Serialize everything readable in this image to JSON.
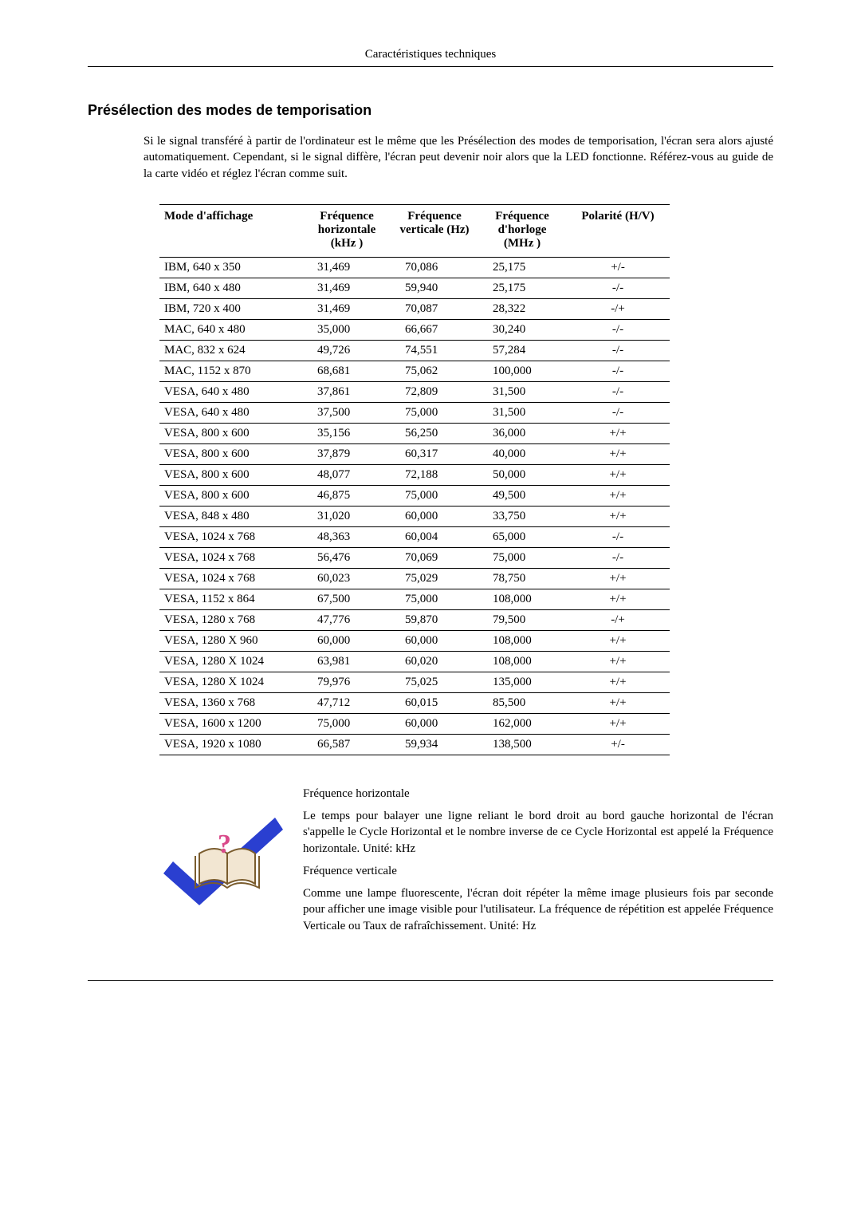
{
  "page_header": "Caractéristiques techniques",
  "section_title": "Présélection des modes de temporisation",
  "intro_text": "Si le signal transféré à partir de l'ordinateur est le même que les Présélection des modes de temporisation, l'écran sera alors ajusté automatiquement. Cependant, si le signal diffère, l'écran peut devenir noir alors que la LED fonctionne. Référez-vous au guide de la carte vidéo et réglez l'écran comme suit.",
  "table": {
    "headers": {
      "mode": "Mode d'affichage",
      "h_freq": "Fréquence horizontale (kHz )",
      "v_freq": "Fréquence verticale (Hz)",
      "clk": "Fréquence d'horloge (MHz )",
      "pol": "Polarité (H/V)"
    },
    "rows": [
      {
        "mode": "IBM, 640 x 350",
        "h": "31,469",
        "v": "70,086",
        "c": "25,175",
        "p": "+/-"
      },
      {
        "mode": "IBM, 640 x 480",
        "h": "31,469",
        "v": "59,940",
        "c": "25,175",
        "p": "-/-"
      },
      {
        "mode": "IBM, 720 x 400",
        "h": "31,469",
        "v": "70,087",
        "c": "28,322",
        "p": "-/+"
      },
      {
        "mode": "MAC, 640 x 480",
        "h": "35,000",
        "v": "66,667",
        "c": "30,240",
        "p": "-/-"
      },
      {
        "mode": "MAC, 832 x 624",
        "h": "49,726",
        "v": "74,551",
        "c": "57,284",
        "p": "-/-"
      },
      {
        "mode": "MAC, 1152 x 870",
        "h": "68,681",
        "v": "75,062",
        "c": "100,000",
        "p": "-/-"
      },
      {
        "mode": "VESA, 640 x 480",
        "h": "37,861",
        "v": "72,809",
        "c": "31,500",
        "p": "-/-"
      },
      {
        "mode": "VESA, 640 x 480",
        "h": "37,500",
        "v": "75,000",
        "c": "31,500",
        "p": "-/-"
      },
      {
        "mode": "VESA, 800 x 600",
        "h": "35,156",
        "v": "56,250",
        "c": "36,000",
        "p": "+/+"
      },
      {
        "mode": "VESA, 800 x 600",
        "h": "37,879",
        "v": "60,317",
        "c": "40,000",
        "p": "+/+"
      },
      {
        "mode": "VESA, 800 x 600",
        "h": "48,077",
        "v": "72,188",
        "c": "50,000",
        "p": "+/+"
      },
      {
        "mode": "VESA, 800 x 600",
        "h": "46,875",
        "v": "75,000",
        "c": "49,500",
        "p": "+/+"
      },
      {
        "mode": "VESA, 848 x 480",
        "h": "31,020",
        "v": "60,000",
        "c": "33,750",
        "p": "+/+"
      },
      {
        "mode": "VESA, 1024 x 768",
        "h": "48,363",
        "v": "60,004",
        "c": "65,000",
        "p": "-/-"
      },
      {
        "mode": "VESA, 1024 x 768",
        "h": "56,476",
        "v": "70,069",
        "c": "75,000",
        "p": "-/-"
      },
      {
        "mode": "VESA, 1024 x 768",
        "h": "60,023",
        "v": "75,029",
        "c": "78,750",
        "p": "+/+"
      },
      {
        "mode": "VESA, 1152 x 864",
        "h": "67,500",
        "v": "75,000",
        "c": "108,000",
        "p": "+/+"
      },
      {
        "mode": "VESA, 1280 x 768",
        "h": "47,776",
        "v": "59,870",
        "c": "79,500",
        "p": "-/+"
      },
      {
        "mode": "VESA, 1280 X 960",
        "h": "60,000",
        "v": "60,000",
        "c": "108,000",
        "p": "+/+"
      },
      {
        "mode": "VESA, 1280 X 1024",
        "h": "63,981",
        "v": "60,020",
        "c": "108,000",
        "p": "+/+"
      },
      {
        "mode": "VESA, 1280 X 1024",
        "h": "79,976",
        "v": "75,025",
        "c": "135,000",
        "p": "+/+"
      },
      {
        "mode": "VESA, 1360 x 768",
        "h": "47,712",
        "v": "60,015",
        "c": "85,500",
        "p": "+/+"
      },
      {
        "mode": "VESA, 1600 x 1200",
        "h": "75,000",
        "v": "60,000",
        "c": "162,000",
        "p": "+/+"
      },
      {
        "mode": "VESA, 1920 x 1080",
        "h": "66,587",
        "v": "59,934",
        "c": "138,500",
        "p": "+/-"
      }
    ]
  },
  "defs": {
    "h_title": "Fréquence horizontale",
    "h_body": "Le temps pour balayer une ligne reliant le bord droit au bord gauche horizontal de l'écran s'appelle le Cycle Horizontal et le nombre inverse de ce Cycle Horizontal est appelé la Fréquence horizontale. Unité: kHz",
    "v_title": "Fréquence verticale",
    "v_body": "Comme une lampe fluorescente, l'écran doit répéter la même image plusieurs fois par seconde pour afficher une image visible pour l'utilisateur. La fréquence de répétition est appelée Fréquence Verticale ou Taux de rafraîchissement. Unité: Hz"
  },
  "icon": {
    "check_color": "#2a3fd0",
    "book_fill": "#f2e6d2",
    "book_stroke": "#7a5c2e",
    "question_color": "#d94a8a"
  }
}
